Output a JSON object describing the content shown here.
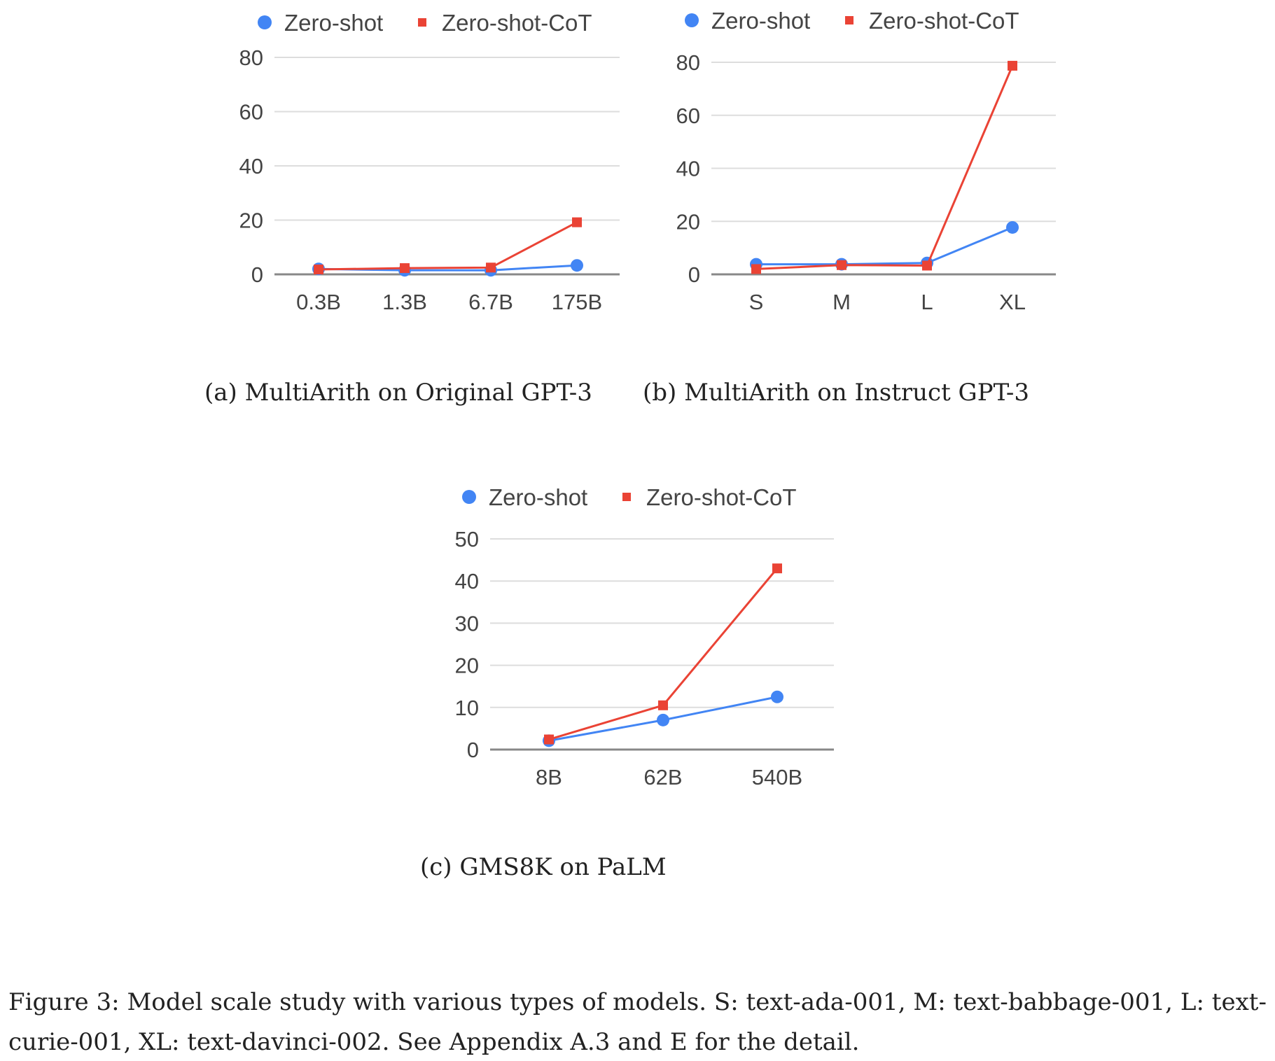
{
  "colors": {
    "zero_shot": "#4285f4",
    "zero_shot_cot": "#ea4335",
    "grid": "#dddddd",
    "baseline": "#888888",
    "text": "#444444"
  },
  "chart_data": [
    {
      "id": "a",
      "type": "line",
      "categories": [
        "0.3B",
        "1.3B",
        "6.7B",
        "175B"
      ],
      "yticks": [
        "0",
        "20",
        "40",
        "60",
        "80"
      ],
      "ylim": [
        0,
        80
      ],
      "grid": true,
      "legend": "top",
      "series": [
        {
          "name": "Zero-shot",
          "marker": "circle",
          "values": [
            2.0,
            1.5,
            1.5,
            3.3
          ]
        },
        {
          "name": "Zero-shot-CoT",
          "marker": "square",
          "values": [
            1.8,
            2.3,
            2.5,
            19.2
          ]
        }
      ],
      "caption": "(a) MultiArith on Original GPT-3"
    },
    {
      "id": "b",
      "type": "line",
      "categories": [
        "S",
        "M",
        "L",
        "XL"
      ],
      "yticks": [
        "0",
        "20",
        "40",
        "60",
        "80"
      ],
      "ylim": [
        0,
        80
      ],
      "grid": true,
      "legend": "top",
      "series": [
        {
          "name": "Zero-shot",
          "marker": "circle",
          "values": [
            3.8,
            3.8,
            4.3,
            17.7
          ]
        },
        {
          "name": "Zero-shot-CoT",
          "marker": "square",
          "values": [
            2.0,
            3.5,
            3.3,
            78.7
          ]
        }
      ],
      "caption": "(b) MultiArith on Instruct GPT-3"
    },
    {
      "id": "c",
      "type": "line",
      "categories": [
        "8B",
        "62B",
        "540B"
      ],
      "yticks": [
        "0",
        "10",
        "20",
        "30",
        "40",
        "50"
      ],
      "ylim": [
        0,
        50
      ],
      "grid": true,
      "legend": "top",
      "series": [
        {
          "name": "Zero-shot",
          "marker": "circle",
          "values": [
            2.1,
            7.0,
            12.5
          ]
        },
        {
          "name": "Zero-shot-CoT",
          "marker": "square",
          "values": [
            2.4,
            10.5,
            43.0
          ]
        }
      ],
      "caption": "(c) GMS8K on PaLM"
    }
  ],
  "figure_caption": {
    "line1": "Figure 3: Model scale study with various types of models. S: text-ada-001, M: text-babbage-001, L: text-",
    "line2": "curie-001, XL: text-davinci-002. See Appendix A.3 and E for the detail."
  }
}
